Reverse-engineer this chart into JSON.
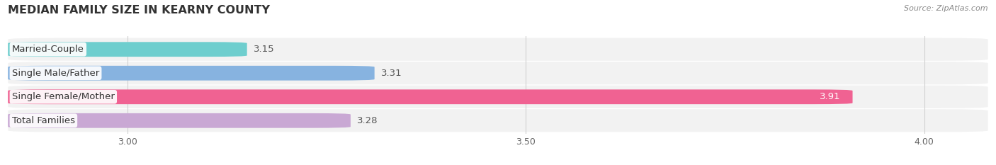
{
  "title": "MEDIAN FAMILY SIZE IN KEARNY COUNTY",
  "source": "Source: ZipAtlas.com",
  "categories": [
    "Married-Couple",
    "Single Male/Father",
    "Single Female/Mother",
    "Total Families"
  ],
  "values": [
    3.15,
    3.31,
    3.91,
    3.28
  ],
  "bar_colors": [
    "#6ecece",
    "#87b3e0",
    "#f06292",
    "#c9a8d4"
  ],
  "xlim": [
    2.85,
    4.08
  ],
  "xticks": [
    3.0,
    3.5,
    4.0
  ],
  "label_fontsize": 9.5,
  "value_fontsize": 9.5,
  "title_fontsize": 11.5,
  "bar_height": 0.62,
  "background_color": "#ffffff",
  "row_bg_color": "#f2f2f2",
  "grid_color": "#d0d0d0",
  "value_color_outside": "#555555",
  "value_color_inside": "#ffffff"
}
